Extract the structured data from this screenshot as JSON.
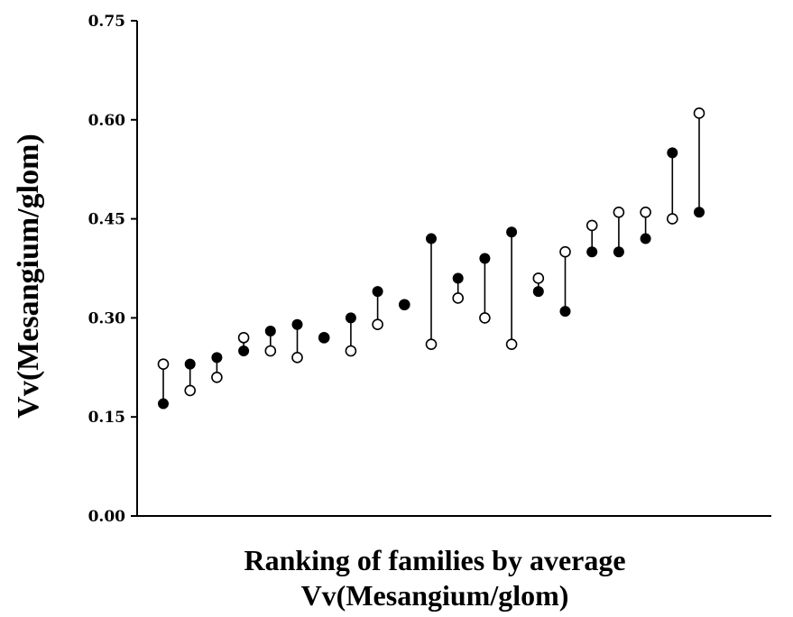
{
  "chart_data": {
    "type": "scatter",
    "title": "",
    "xlabel": [
      "Ranking of families by average",
      "Vv(Mesangium/glom)"
    ],
    "ylabel": "Vv(Mesangium/glom)",
    "ylim": [
      0,
      0.75
    ],
    "yticks": [
      0.0,
      0.15,
      0.3,
      0.45,
      0.6,
      0.75
    ],
    "ytick_labels": [
      "0.00",
      "0.15",
      "0.30",
      "0.45",
      "0.60",
      "0.75"
    ],
    "grid": false,
    "legend": "none",
    "x": [
      1,
      2,
      3,
      4,
      5,
      6,
      7,
      8,
      9,
      10,
      11,
      12,
      13,
      14,
      15,
      16,
      17,
      18,
      19,
      20,
      21
    ],
    "series": [
      {
        "marker": "filled-circle",
        "values": [
          0.17,
          0.23,
          0.24,
          0.25,
          0.28,
          0.29,
          0.27,
          0.3,
          0.34,
          0.32,
          0.42,
          0.36,
          0.39,
          0.43,
          0.34,
          0.31,
          0.4,
          0.4,
          0.42,
          0.55,
          0.46
        ]
      },
      {
        "marker": "open-circle",
        "values": [
          0.23,
          0.19,
          0.21,
          0.27,
          0.25,
          0.24,
          0.27,
          0.25,
          0.29,
          0.32,
          0.26,
          0.33,
          0.3,
          0.26,
          0.36,
          0.4,
          0.44,
          0.46,
          0.46,
          0.45,
          0.61
        ]
      }
    ],
    "connector": "vertical line joining the two values of each family"
  }
}
